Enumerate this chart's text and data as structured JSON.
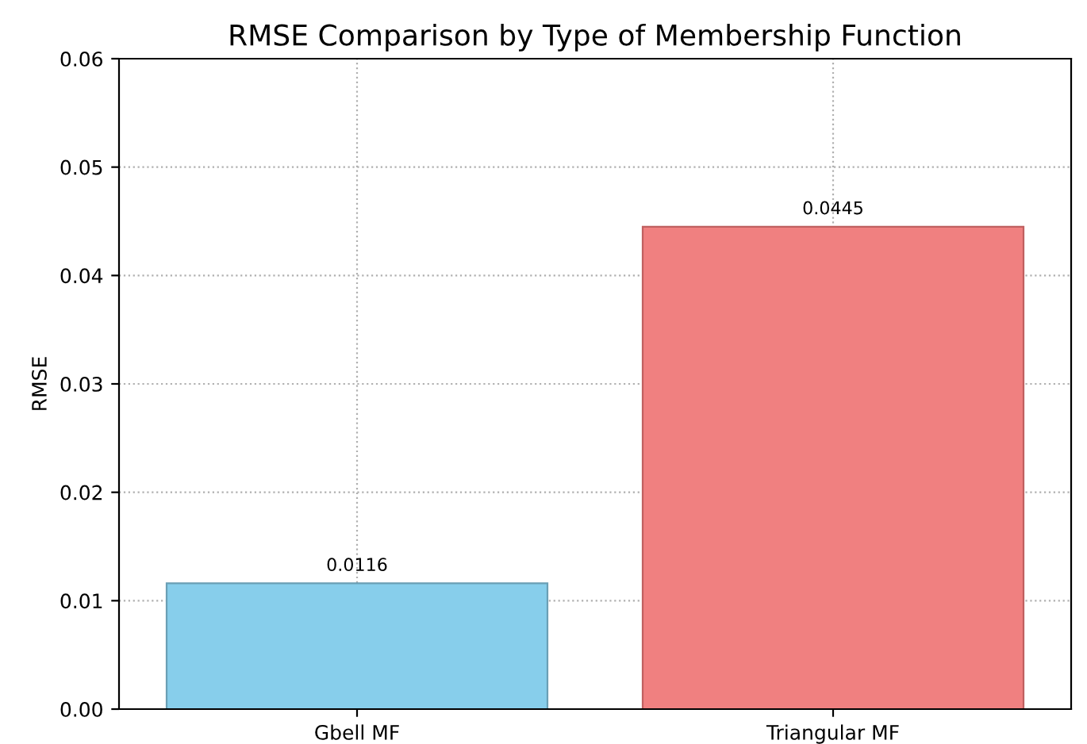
{
  "chart_data": {
    "type": "bar",
    "title": "RMSE Comparison by Type of Membership Function",
    "ylabel": "RMSE",
    "categories": [
      "Gbell MF",
      "Triangular MF"
    ],
    "values": [
      0.0116,
      0.0445
    ],
    "colors": [
      "#87ceeb",
      "#f08080"
    ],
    "ylim": [
      0,
      0.06
    ],
    "yticks": [
      {
        "value": 0,
        "label": "0.00"
      },
      {
        "value": 0.01,
        "label": "0.01"
      },
      {
        "value": 0.02,
        "label": "0.02"
      },
      {
        "value": 0.03,
        "label": "0.03"
      },
      {
        "value": 0.04,
        "label": "0.04"
      },
      {
        "value": 0.05,
        "label": "0.05"
      },
      {
        "value": 0.06,
        "label": "0.06"
      }
    ],
    "grid": true,
    "data_labels": true
  }
}
